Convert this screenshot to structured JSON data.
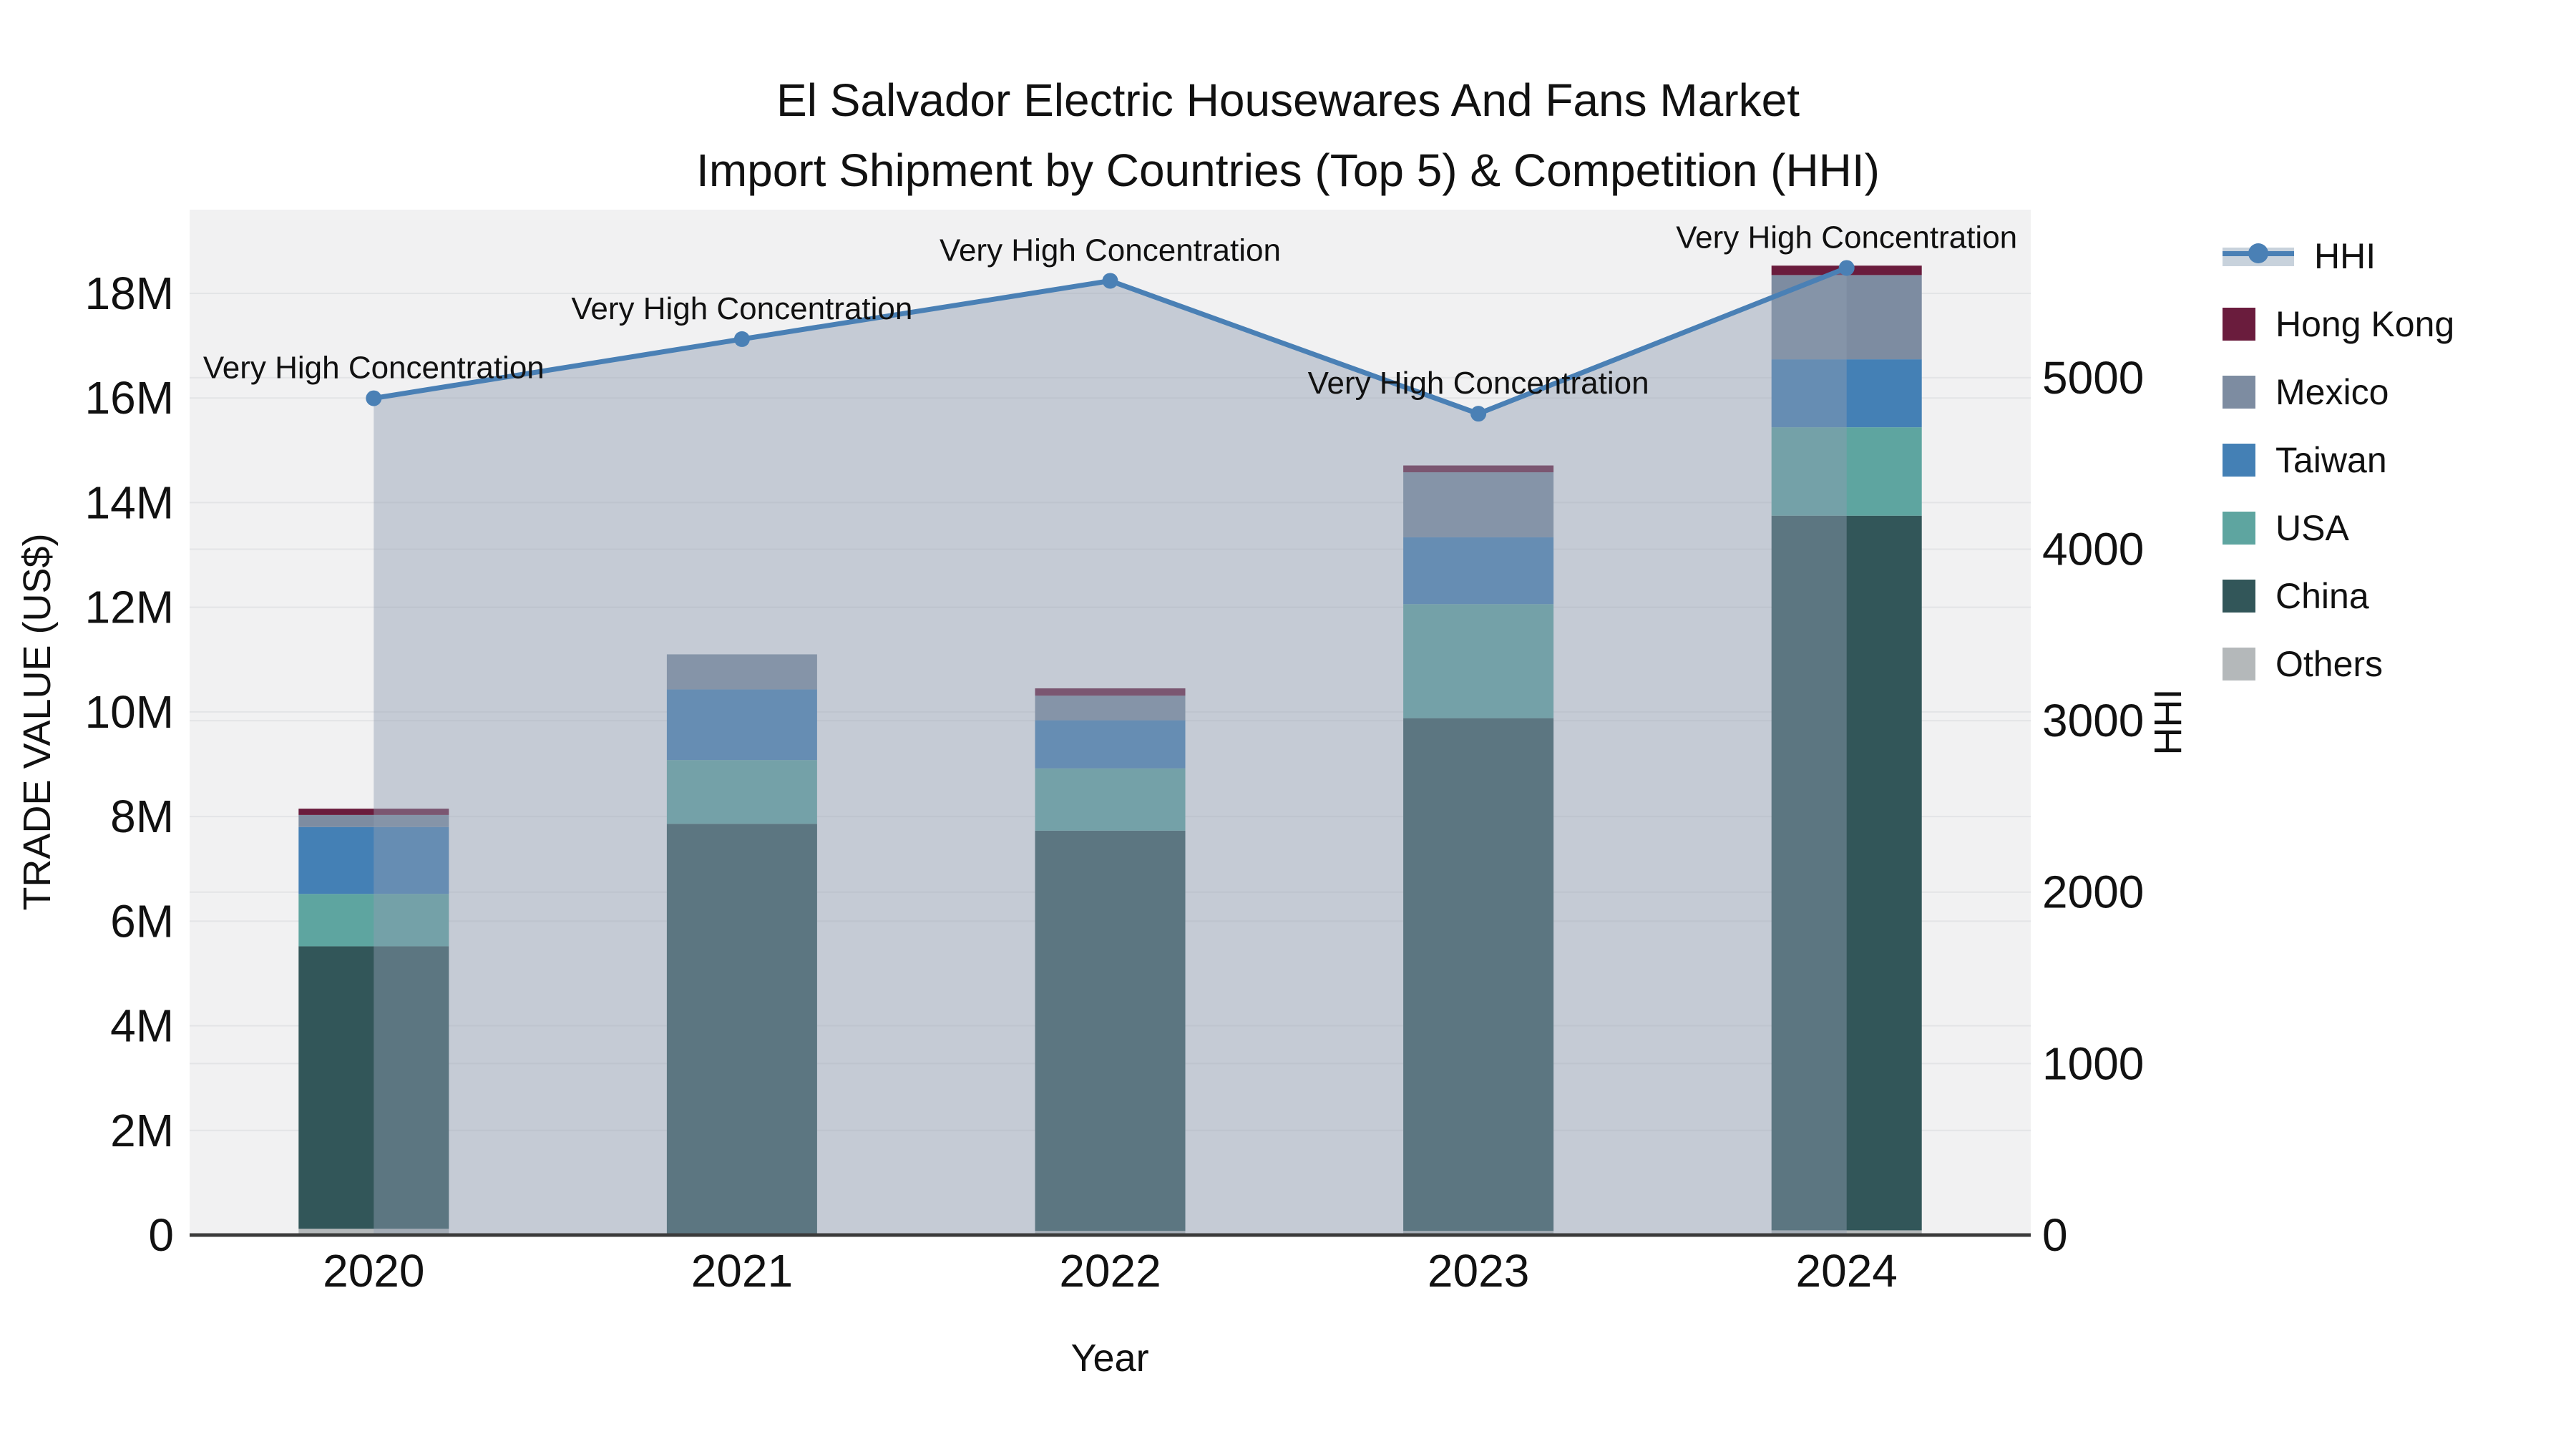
{
  "title": {
    "line1": "El Salvador Electric Housewares And Fans Market",
    "line2": "Import Shipment by Countries (Top 5) & Competition (HHI)"
  },
  "axes": {
    "left_title": "TRADE VALUE (US$)",
    "right_title": "HHI",
    "x_title": "Year"
  },
  "legend": {
    "items": [
      {
        "label": "HHI",
        "type": "line",
        "color": "#4a80b5",
        "band": "#c8d2dc"
      },
      {
        "label": "Hong Kong",
        "type": "box",
        "color": "#6a1c3d"
      },
      {
        "label": "Mexico",
        "type": "box",
        "color": "#7d8ca1"
      },
      {
        "label": "Taiwan",
        "type": "box",
        "color": "#4480b5"
      },
      {
        "label": "USA",
        "type": "box",
        "color": "#5ea5a0"
      },
      {
        "label": "China",
        "type": "box",
        "color": "#325659"
      },
      {
        "label": "Others",
        "type": "box",
        "color": "#b4b8ba"
      }
    ]
  },
  "chart_data": {
    "type": "bar+line",
    "title": "El Salvador Electric Housewares And Fans Market Import Shipment by Countries (Top 5) & Competition (HHI)",
    "xlabel": "Year",
    "ylabel_left": "TRADE VALUE (US$)",
    "ylabel_right": "HHI",
    "categories": [
      "2020",
      "2021",
      "2022",
      "2023",
      "2024"
    ],
    "bar_unit": "millions US$",
    "series": [
      {
        "name": "Others",
        "color": "#b4b8ba",
        "values": [
          0.12,
          0.03,
          0.08,
          0.08,
          0.09
        ]
      },
      {
        "name": "China",
        "color": "#325659",
        "values": [
          5.4,
          7.83,
          7.65,
          9.8,
          13.66
        ]
      },
      {
        "name": "USA",
        "color": "#5ea5a0",
        "values": [
          1.0,
          1.22,
          1.19,
          2.18,
          1.69
        ]
      },
      {
        "name": "Taiwan",
        "color": "#4480b5",
        "values": [
          1.28,
          1.35,
          0.92,
          1.28,
          1.3
        ]
      },
      {
        "name": "Mexico",
        "color": "#7d8ca1",
        "values": [
          0.23,
          0.67,
          0.47,
          1.24,
          1.61
        ]
      },
      {
        "name": "Hong Kong",
        "color": "#6a1c3d",
        "values": [
          0.12,
          0.0,
          0.14,
          0.13,
          0.18
        ]
      }
    ],
    "bar_totals": [
      8.15,
      11.1,
      10.45,
      14.71,
      18.53
    ],
    "line_series": {
      "name": "HHI",
      "color": "#4a80b5",
      "area_fill": "rgba(144,158,177,0.45)",
      "values": [
        4880,
        5225,
        5565,
        4790,
        5640
      ]
    },
    "annotations": [
      "Very High Concentration",
      "Very High Concentration",
      "Very High Concentration",
      "Very High Concentration",
      "Very High Concentration"
    ],
    "left_axis": {
      "range": [
        0,
        19.6
      ],
      "tick_step": 2,
      "tick_labels": [
        "0",
        "2M",
        "4M",
        "6M",
        "8M",
        "10M",
        "12M",
        "14M",
        "16M",
        "18M"
      ]
    },
    "right_axis": {
      "range": [
        0,
        5980
      ],
      "tick_step": 1000,
      "tick_labels": [
        "0",
        "1000",
        "2000",
        "3000",
        "4000",
        "5000"
      ]
    },
    "grid": true,
    "legend_position": "right",
    "plot_bg": "#f1f1f2",
    "grid_color": "#e3e4e6",
    "axisline_color": "#3b3b3b"
  }
}
